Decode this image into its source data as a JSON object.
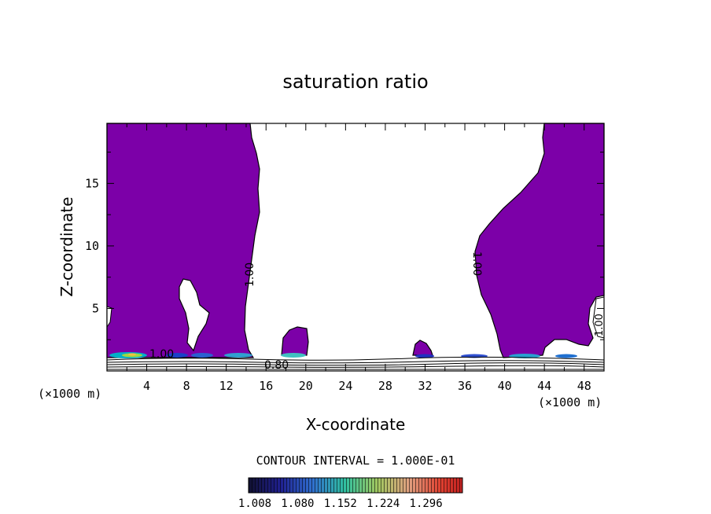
{
  "chart_data": {
    "type": "contour",
    "title": "saturation ratio",
    "xlabel": "X-coordinate",
    "ylabel": "Z-coordinate",
    "x_unit_left": "(×1000 m)",
    "x_unit_right": "(×1000 m)",
    "xlim": [
      0,
      50
    ],
    "ylim": [
      0,
      19.8
    ],
    "x_ticks": [
      "4",
      "8",
      "12",
      "16",
      "20",
      "24",
      "28",
      "32",
      "36",
      "40",
      "44",
      "48"
    ],
    "y_ticks": [
      "5",
      "10",
      "15"
    ],
    "contour_labels": [
      "1.00",
      "1.00",
      "1.00",
      "1.00",
      "0.80"
    ],
    "contour_interval_text": "CONTOUR INTERVAL = 1.000E-01",
    "colorbar_ticks": [
      "1.008",
      "1.080",
      "1.152",
      "1.224",
      "1.296"
    ],
    "fill_color": "#7c00a8",
    "grid": false
  }
}
